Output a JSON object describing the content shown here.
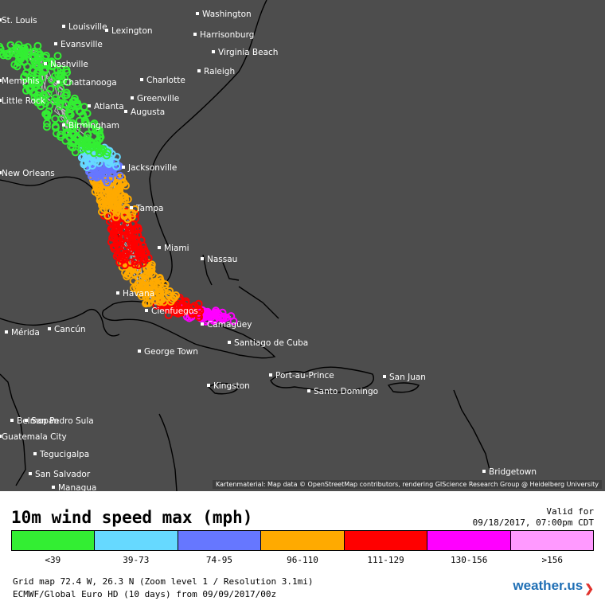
{
  "map": {
    "background_color": "#4d4d4d",
    "land_color": "#4d4d4d",
    "coastline_color": "#000000",
    "cities": [
      {
        "name": "Washington"
      },
      {
        "name": "Harrisonburg"
      },
      {
        "name": "Virginia Beach"
      },
      {
        "name": "Louisville"
      },
      {
        "name": "Lexington"
      },
      {
        "name": "Evansville"
      },
      {
        "name": "Nashville"
      },
      {
        "name": "St. Louis"
      },
      {
        "name": "Raleigh"
      },
      {
        "name": "Charlotte"
      },
      {
        "name": "Chattanooga"
      },
      {
        "name": "Greenville"
      },
      {
        "name": "Memphis"
      },
      {
        "name": "Atlanta"
      },
      {
        "name": "Augusta"
      },
      {
        "name": "Little Rock"
      },
      {
        "name": "Birmingham"
      },
      {
        "name": "Jacksonville"
      },
      {
        "name": "New Orleans"
      },
      {
        "name": "Tampa"
      },
      {
        "name": "Miami"
      },
      {
        "name": "Nassau"
      },
      {
        "name": "Havana"
      },
      {
        "name": "Cienfuegos"
      },
      {
        "name": "Camagüey"
      },
      {
        "name": "Santiago de Cuba"
      },
      {
        "name": "Mérida"
      },
      {
        "name": "Cancún"
      },
      {
        "name": "George Town"
      },
      {
        "name": "Kingston"
      },
      {
        "name": "Port-au-Prince"
      },
      {
        "name": "Santo Domingo"
      },
      {
        "name": "San Juan"
      },
      {
        "name": "Belmopan"
      },
      {
        "name": "San Pedro Sula"
      },
      {
        "name": "Guatemala City"
      },
      {
        "name": "Tegucigalpa"
      },
      {
        "name": "San Salvador"
      },
      {
        "name": "Managua"
      },
      {
        "name": "Bridgetown"
      }
    ],
    "credit": "Kartenmaterial: Map data © OpenStreetMap contributors, rendering GIScience Research Group @ Heidelberg University"
  },
  "panel": {
    "title": "10m wind speed max (mph)",
    "valid_label": "Valid for",
    "valid_date": "09/18/2017, 07:00pm CDT",
    "legend": [
      {
        "label": "<39",
        "color": "#33ee33"
      },
      {
        "label": "39-73",
        "color": "#66d9ff"
      },
      {
        "label": "74-95",
        "color": "#6677ff"
      },
      {
        "label": "96-110",
        "color": "#ffaa00"
      },
      {
        "label": "111-129",
        "color": "#ff0000"
      },
      {
        "label": "130-156",
        "color": "#ff00ff"
      },
      {
        "label": ">156",
        "color": "#ff99ff"
      }
    ],
    "grid_info": "Grid map 72.4 W, 26.3 N (Zoom level 1 / Resolution 3.1mi)",
    "model_info": "ECMWF/Global Euro HD (10 days) from 09/09/2017/00z",
    "brand": "weather.us"
  }
}
